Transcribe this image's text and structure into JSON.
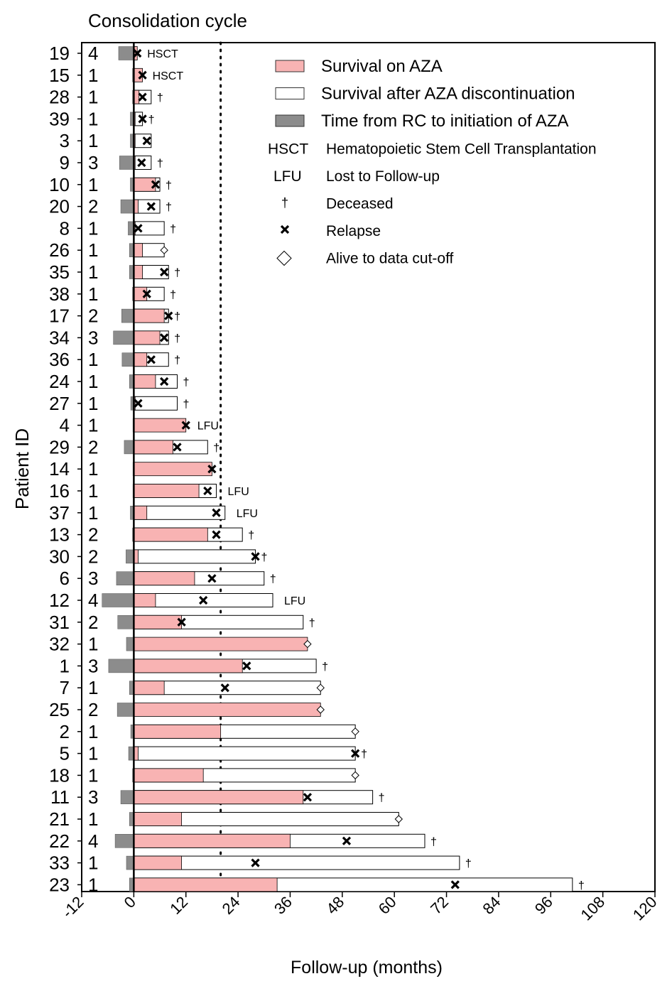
{
  "chart_data": {
    "type": "bar",
    "subtype": "swimmer-plot",
    "title": "",
    "column_header": "Consolidation cycle",
    "xlabel": "Follow-up (months)",
    "ylabel": "Patient ID",
    "xlim": [
      -12,
      120
    ],
    "x_ticks": [
      -12,
      0,
      12,
      24,
      36,
      48,
      60,
      72,
      84,
      96,
      108,
      120
    ],
    "reference_line_x": 20,
    "legend": {
      "position": "top-right",
      "entries": [
        {
          "key": "aza",
          "label": "Survival on AZA",
          "color": "#f8b3b3"
        },
        {
          "key": "after",
          "label": "Survival after AZA discontinuation",
          "color": "#ffffff"
        },
        {
          "key": "rc",
          "label": "Time from RC to initiation of AZA",
          "color": "#8c8c8c"
        },
        {
          "key": "hsct",
          "symbol": "HSCT",
          "label": "Hematopoietic Stem Cell Transplantation"
        },
        {
          "key": "lfu",
          "symbol": "LFU",
          "label": "Lost to Follow-up"
        },
        {
          "key": "deceased",
          "symbol": "†",
          "label": "Deceased"
        },
        {
          "key": "relapse",
          "symbol": "✖",
          "label": "Relapse"
        },
        {
          "key": "alive",
          "symbol": "◇",
          "label": "Alive to data cut-off"
        }
      ]
    },
    "patients": [
      {
        "id": "19",
        "cycle": "4",
        "rc": 3.5,
        "aza": 0.8,
        "total": 0.8,
        "relapse": 0.8,
        "end": "HSCT"
      },
      {
        "id": "15",
        "cycle": "1",
        "rc": 0.3,
        "aza": 2.0,
        "total": 2.0,
        "relapse": 2.0,
        "end": "HSCT"
      },
      {
        "id": "28",
        "cycle": "1",
        "rc": 0.3,
        "aza": 1.2,
        "total": 4.0,
        "relapse": 2.0,
        "end": "deceased"
      },
      {
        "id": "39",
        "cycle": "1",
        "rc": 0.8,
        "aza": 0.3,
        "total": 2.0,
        "relapse": 2.0,
        "end": "deceased"
      },
      {
        "id": "3",
        "cycle": "1",
        "rc": 0.8,
        "aza": 0.3,
        "total": 4.0,
        "relapse": 3.0,
        "end": "none"
      },
      {
        "id": "9",
        "cycle": "3",
        "rc": 3.3,
        "aza": 0.3,
        "total": 4.0,
        "relapse": 1.8,
        "end": "deceased"
      },
      {
        "id": "10",
        "cycle": "1",
        "rc": 0.8,
        "aza": 5.0,
        "total": 6.0,
        "relapse": 5.0,
        "end": "deceased"
      },
      {
        "id": "20",
        "cycle": "2",
        "rc": 3.0,
        "aza": 1.0,
        "total": 6.0,
        "relapse": 4.0,
        "end": "deceased"
      },
      {
        "id": "8",
        "cycle": "1",
        "rc": 1.3,
        "aza": 0.3,
        "total": 7.0,
        "relapse": 1.0,
        "end": "deceased"
      },
      {
        "id": "26",
        "cycle": "1",
        "rc": 1.0,
        "aza": 2.0,
        "total": 7.0,
        "relapse": null,
        "end": "alive"
      },
      {
        "id": "35",
        "cycle": "1",
        "rc": 1.0,
        "aza": 2.0,
        "total": 8.0,
        "relapse": 7.0,
        "end": "deceased"
      },
      {
        "id": "38",
        "cycle": "1",
        "rc": 0.3,
        "aza": 3.0,
        "total": 7.0,
        "relapse": 3.0,
        "end": "deceased"
      },
      {
        "id": "17",
        "cycle": "2",
        "rc": 2.8,
        "aza": 7.0,
        "total": 8.0,
        "relapse": 8.0,
        "end": "deceased"
      },
      {
        "id": "34",
        "cycle": "3",
        "rc": 4.7,
        "aza": 6.0,
        "total": 8.0,
        "relapse": 7.0,
        "end": "deceased"
      },
      {
        "id": "36",
        "cycle": "1",
        "rc": 2.7,
        "aza": 3.0,
        "total": 8.0,
        "relapse": 4.0,
        "end": "deceased"
      },
      {
        "id": "24",
        "cycle": "1",
        "rc": 1.0,
        "aza": 5.0,
        "total": 10.0,
        "relapse": 7.0,
        "end": "deceased"
      },
      {
        "id": "27",
        "cycle": "1",
        "rc": 0.7,
        "aza": 0.3,
        "total": 10.0,
        "relapse": 1.0,
        "end": "deceased"
      },
      {
        "id": "4",
        "cycle": "1",
        "rc": 0.2,
        "aza": 12.0,
        "total": 12.0,
        "relapse": 12.0,
        "end": "LFU"
      },
      {
        "id": "29",
        "cycle": "2",
        "rc": 2.2,
        "aza": 9.0,
        "total": 17.0,
        "relapse": 10.0,
        "end": "deceased"
      },
      {
        "id": "14",
        "cycle": "1",
        "rc": 0.2,
        "aza": 18.0,
        "total": 18.0,
        "relapse": 18.0,
        "end": "none"
      },
      {
        "id": "16",
        "cycle": "1",
        "rc": 0.2,
        "aza": 15.0,
        "total": 19.0,
        "relapse": 17.0,
        "end": "LFU"
      },
      {
        "id": "37",
        "cycle": "1",
        "rc": 0.8,
        "aza": 3.0,
        "total": 21.0,
        "relapse": 19.0,
        "end": "LFU"
      },
      {
        "id": "13",
        "cycle": "2",
        "rc": 0.3,
        "aza": 17.0,
        "total": 25.0,
        "relapse": 19.0,
        "end": "deceased"
      },
      {
        "id": "30",
        "cycle": "2",
        "rc": 1.8,
        "aza": 1.0,
        "total": 28.0,
        "relapse": 28.0,
        "end": "deceased"
      },
      {
        "id": "6",
        "cycle": "3",
        "rc": 4.0,
        "aza": 14.0,
        "total": 30.0,
        "relapse": 18.0,
        "end": "deceased"
      },
      {
        "id": "12",
        "cycle": "4",
        "rc": 7.3,
        "aza": 5.0,
        "total": 32.0,
        "relapse": 16.0,
        "end": "LFU"
      },
      {
        "id": "31",
        "cycle": "2",
        "rc": 3.7,
        "aza": 11.0,
        "total": 39.0,
        "relapse": 11.0,
        "end": "deceased"
      },
      {
        "id": "32",
        "cycle": "1",
        "rc": 1.7,
        "aza": 40.0,
        "total": 40.0,
        "relapse": null,
        "end": "alive"
      },
      {
        "id": "1",
        "cycle": "3",
        "rc": 5.8,
        "aza": 25.0,
        "total": 42.0,
        "relapse": 26.0,
        "end": "deceased"
      },
      {
        "id": "7",
        "cycle": "1",
        "rc": 1.0,
        "aza": 7.0,
        "total": 43.0,
        "relapse": 21.0,
        "end": "alive"
      },
      {
        "id": "25",
        "cycle": "2",
        "rc": 3.8,
        "aza": 43.0,
        "total": 43.0,
        "relapse": null,
        "end": "alive"
      },
      {
        "id": "2",
        "cycle": "1",
        "rc": 0.7,
        "aza": 20.0,
        "total": 51.0,
        "relapse": null,
        "end": "alive"
      },
      {
        "id": "5",
        "cycle": "1",
        "rc": 1.2,
        "aza": 1.0,
        "total": 51.0,
        "relapse": 51.0,
        "end": "deceased"
      },
      {
        "id": "18",
        "cycle": "1",
        "rc": 0.3,
        "aza": 16.0,
        "total": 51.0,
        "relapse": null,
        "end": "alive"
      },
      {
        "id": "11",
        "cycle": "3",
        "rc": 3.0,
        "aza": 39.0,
        "total": 55.0,
        "relapse": 40.0,
        "end": "deceased"
      },
      {
        "id": "21",
        "cycle": "1",
        "rc": 1.0,
        "aza": 11.0,
        "total": 61.0,
        "relapse": null,
        "end": "alive"
      },
      {
        "id": "22",
        "cycle": "4",
        "rc": 4.3,
        "aza": 36.0,
        "total": 67.0,
        "relapse": 49.0,
        "end": "deceased"
      },
      {
        "id": "33",
        "cycle": "1",
        "rc": 1.7,
        "aza": 11.0,
        "total": 75.0,
        "relapse": 28.0,
        "end": "deceased"
      },
      {
        "id": "23",
        "cycle": "1",
        "rc": 1.0,
        "aza": 33.0,
        "total": 101.0,
        "relapse": 74.0,
        "end": "deceased"
      }
    ]
  }
}
